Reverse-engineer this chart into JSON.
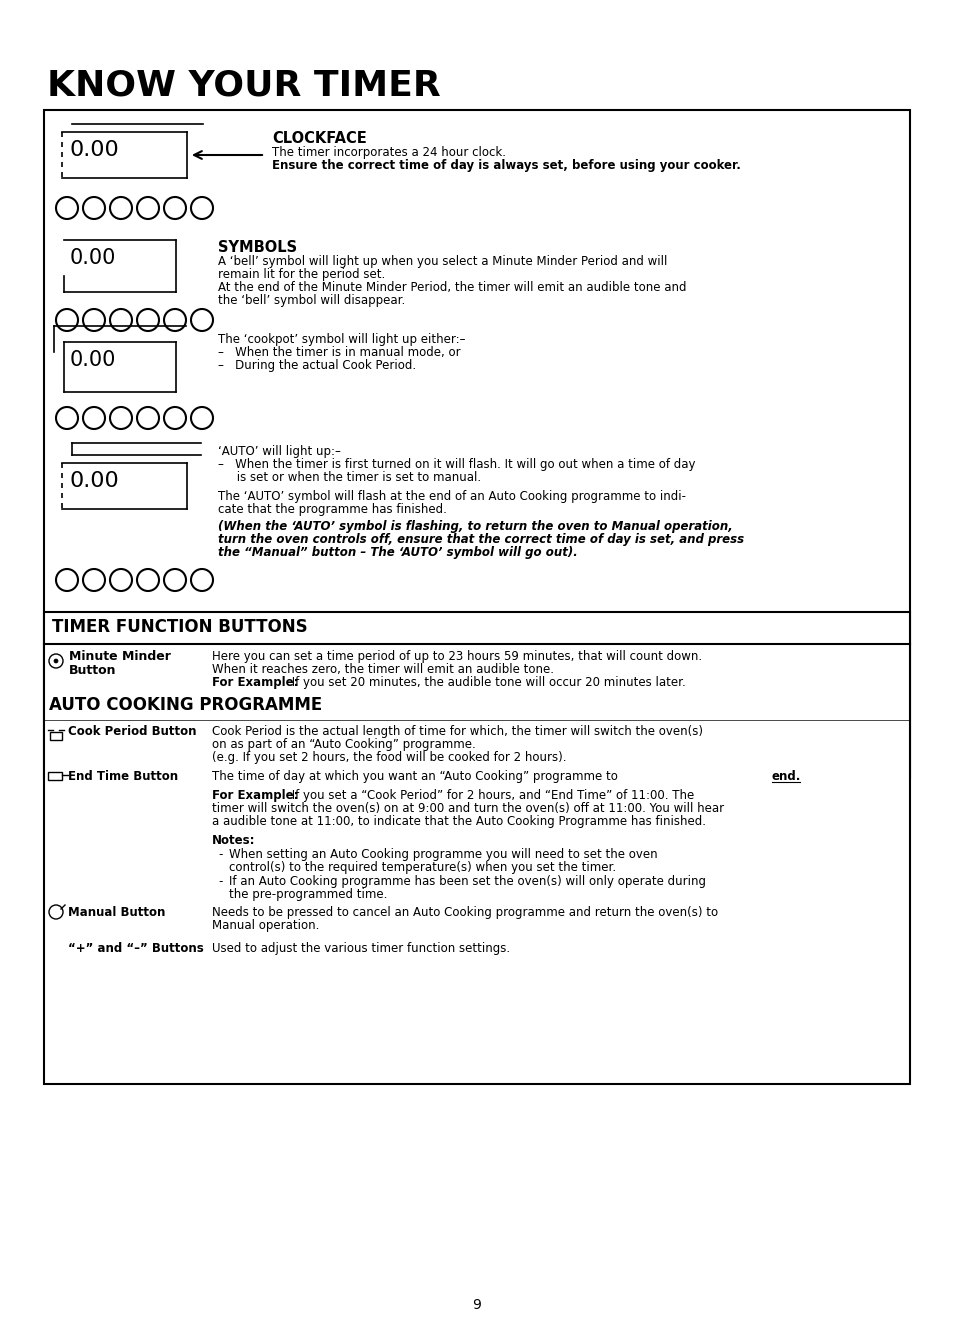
{
  "title": "KNOW YOUR TIMER",
  "page_number": "9",
  "clockface_title": "CLOCKFACE",
  "clockface_desc1": "The timer incorporates a 24 hour clock.",
  "clockface_desc2": "Ensure the correct time of day is always set, before using your cooker.",
  "symbols_title": "SYMBOLS",
  "bell_text1": "A ‘bell’ symbol will light up when you select a Minute Minder Period and will",
  "bell_text2": "remain lit for the period set.",
  "bell_text3": "At the end of the Minute Minder Period, the timer will emit an audible tone and",
  "bell_text4": "the ‘bell’ symbol will disappear.",
  "cookpot_text0": "The ‘cookpot’ symbol will light up either:–",
  "cookpot_text1": "–   When the timer is in manual mode, or",
  "cookpot_text2": "–   During the actual Cook Period.",
  "auto_text0": "‘AUTO’ will light up:–",
  "auto_text1": "–   When the timer is first turned on it will flash. It will go out when a time of day",
  "auto_text1b": "     is set or when the timer is set to manual.",
  "auto_text2": "The ‘AUTO’ symbol will flash at the end of an Auto Cooking programme to indi-",
  "auto_text2b": "cate that the programme has finished.",
  "auto_text3": "(When the ‘AUTO’ symbol is flashing, to return the oven to Manual operation,",
  "auto_text3b": "turn the oven controls off, ensure that the correct time of day is set, and press",
  "auto_text3c": "the “Manual” button – The ‘AUTO’ symbol will go out).",
  "tfb_title": "TIMER FUNCTION BUTTONS",
  "mm_label1": "Minute Minder",
  "mm_label2": "Button",
  "mm_text1": "Here you can set a time period of up to 23 hours 59 minutes, that will count down.",
  "mm_text2": "When it reaches zero, the timer will emit an audible tone.",
  "mm_fe_bold": "For Example:",
  "mm_fe_text": " If you set 20 minutes, the audible tone will occur 20 minutes later.",
  "acp_title": "AUTO COOKING PROGRAMME",
  "cp_label": "Cook Period Button",
  "cp_text1": "Cook Period is the actual length of time for which, the timer will switch the oven(s)",
  "cp_text2": "on as part of an “Auto Cooking” programme.",
  "cp_text3": "(e.g. If you set 2 hours, the food will be cooked for 2 hours).",
  "et_label": "End Time Button",
  "et_text1": "The time of day at which you want an “Auto Cooking” programme to ",
  "et_end": "end.",
  "et_fe_bold": "For Example:",
  "et_fe1": " If you set a “Cook Period” for 2 hours, and “End Time” of 11:00. The",
  "et_fe2": "timer will switch the oven(s) on at 9:00 and turn the oven(s) off at 11:00. You will hear",
  "et_fe3": "a audible tone at 11:00, to indicate that the Auto Cooking Programme has finished.",
  "notes_label": "Notes:",
  "note1a": "When setting an Auto Cooking programme you will need to set the oven",
  "note1b": "control(s) to the required temperature(s) when you set the timer.",
  "note2a": "If an Auto Cooking programme has been set the oven(s) will only operate during",
  "note2b": "the pre-programmed time.",
  "manual_label": "Manual Button",
  "manual_text1": "Needs to be pressed to cancel an Auto Cooking programme and return the oven(s) to",
  "manual_text2": "Manual operation.",
  "pm_label": "“+” and “–” Buttons",
  "pm_text": "Used to adjust the various timer function settings."
}
